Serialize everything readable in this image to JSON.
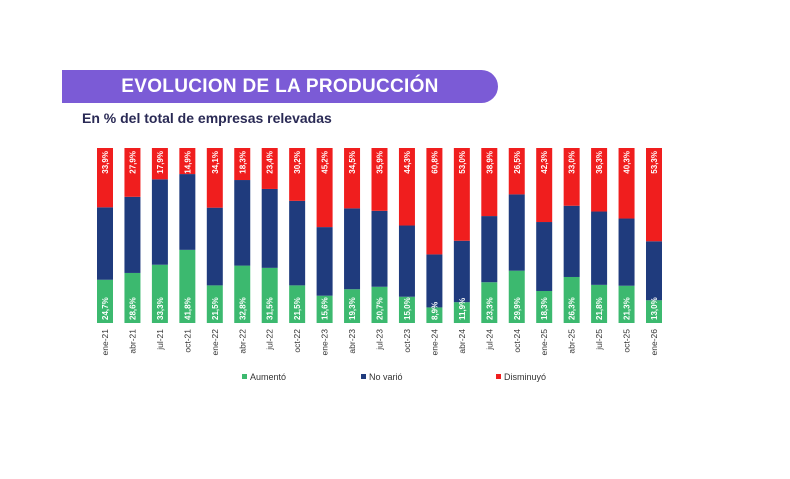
{
  "header": {
    "title": "EVOLUCION DE LA PRODUCCIÓN",
    "subtitle": "En % del total de empresas relevadas"
  },
  "colors": {
    "aumento": "#3cb96f",
    "no_vario": "#1f3b7d",
    "disminuyo": "#f01e1e",
    "title_bg": "#7b5bd6"
  },
  "chart_data": {
    "type": "bar",
    "stacked": true,
    "orientation": "vertical",
    "ylim": [
      0,
      100
    ],
    "categories": [
      "ene-21",
      "abr-21",
      "jul-21",
      "oct-21",
      "ene-22",
      "abr-22",
      "jul-22",
      "oct-22",
      "ene-23",
      "abr-23",
      "jul-23",
      "oct-23",
      "ene-24",
      "abr-24",
      "jul-24",
      "oct-24",
      "ene-25",
      "abr-25",
      "jul-25",
      "oct-25",
      "ene-26"
    ],
    "series": [
      {
        "name": "Aumentó",
        "values": [
          24.7,
          28.6,
          33.3,
          41.8,
          21.5,
          32.8,
          31.5,
          21.5,
          15.6,
          19.3,
          20.7,
          15.0,
          8.9,
          11.9,
          23.3,
          29.9,
          18.3,
          26.3,
          21.8,
          21.3,
          13.0
        ],
        "labels": [
          "24,7%",
          "28,6%",
          "33,3%",
          "41,8%",
          "21,5%",
          "32,8%",
          "31,5%",
          "21,5%",
          "15,6%",
          "19,3%",
          "20,7%",
          "15,0%",
          "8,9%",
          "11,9%",
          "23,3%",
          "29,9%",
          "18,3%",
          "26,3%",
          "21,8%",
          "21,3%",
          "13,0%"
        ]
      },
      {
        "name": "No varió",
        "values": [
          41.4,
          43.5,
          48.8,
          43.3,
          44.4,
          48.9,
          45.1,
          48.3,
          39.2,
          46.2,
          43.4,
          40.7,
          30.3,
          35.1,
          37.8,
          43.6,
          39.4,
          40.7,
          41.9,
          38.4,
          33.7
        ]
      },
      {
        "name": "Disminuyó",
        "values": [
          33.9,
          27.9,
          17.9,
          14.9,
          34.1,
          18.3,
          23.4,
          30.2,
          45.2,
          34.5,
          35.9,
          44.3,
          60.8,
          53.0,
          38.9,
          26.5,
          42.3,
          33.0,
          36.3,
          40.3,
          53.3
        ],
        "labels": [
          "33,9%",
          "27,9%",
          "17,9%",
          "14,9%",
          "34,1%",
          "18,3%",
          "23,4%",
          "30,2%",
          "45,2%",
          "34,5%",
          "35,9%",
          "44,3%",
          "60,8%",
          "53,0%",
          "38,9%",
          "26,5%",
          "42,3%",
          "33,0%",
          "36,3%",
          "40,3%",
          "53,3%"
        ]
      }
    ],
    "legend": [
      "Aumentó",
      "No varió",
      "Disminuyó"
    ],
    "legend_position": "bottom"
  }
}
